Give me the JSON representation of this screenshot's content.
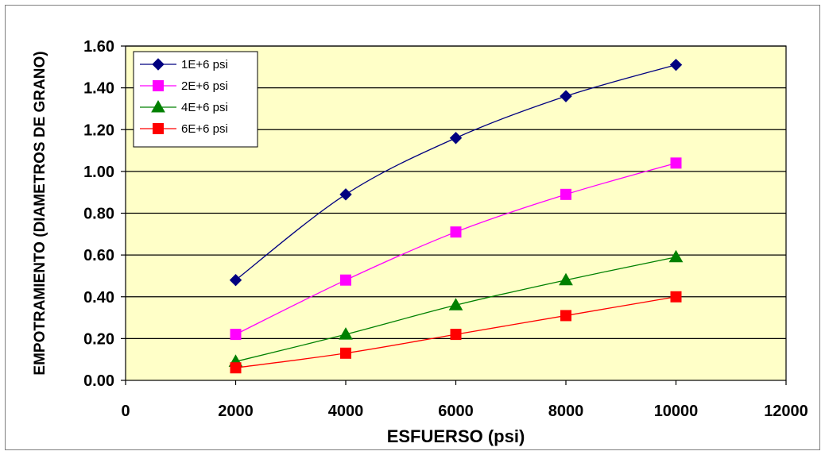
{
  "chart_data": {
    "type": "line",
    "xlabel": "ESFUERSO (psi)",
    "ylabel": "EMPOTRAMIENTO (DIAMETROS DE GRANO)",
    "xlim": [
      0,
      12000
    ],
    "ylim": [
      0,
      1.6
    ],
    "x_ticks": [
      "0",
      "2000",
      "4000",
      "6000",
      "8000",
      "10000",
      "12000"
    ],
    "y_ticks": [
      "0.00",
      "0.20",
      "0.40",
      "0.60",
      "0.80",
      "1.00",
      "1.20",
      "1.40",
      "1.60"
    ],
    "grid": "horizontal",
    "legend_position": "top-left",
    "plot_background": "#ffffc8",
    "series": [
      {
        "name": "1E+6 psi",
        "color": "#000080",
        "marker": "diamond",
        "x": [
          2000,
          4000,
          6000,
          8000,
          10000
        ],
        "y": [
          0.48,
          0.89,
          1.16,
          1.36,
          1.51
        ]
      },
      {
        "name": "2E+6 psi",
        "color": "#ff00ff",
        "marker": "square",
        "x": [
          2000,
          4000,
          6000,
          8000,
          10000
        ],
        "y": [
          0.22,
          0.48,
          0.71,
          0.89,
          1.04
        ]
      },
      {
        "name": "4E+6 psi",
        "color": "#008000",
        "marker": "triangle",
        "x": [
          2000,
          4000,
          6000,
          8000,
          10000
        ],
        "y": [
          0.09,
          0.22,
          0.36,
          0.48,
          0.59
        ]
      },
      {
        "name": "6E+6 psi",
        "color": "#ff0000",
        "marker": "square",
        "x": [
          2000,
          4000,
          6000,
          8000,
          10000
        ],
        "y": [
          0.06,
          0.13,
          0.22,
          0.31,
          0.4
        ]
      }
    ]
  }
}
